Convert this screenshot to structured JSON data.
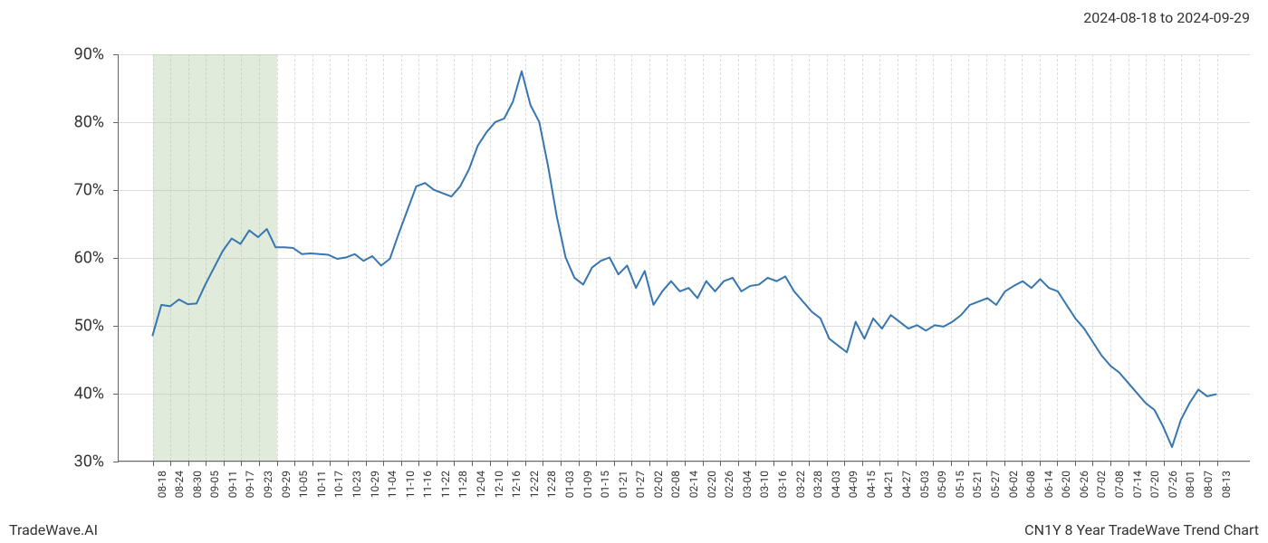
{
  "date_range": "2024-08-18 to 2024-09-29",
  "footer_left": "TradeWave.AI",
  "footer_right": "CN1Y 8 Year TradeWave Trend Chart",
  "chart": {
    "type": "line",
    "background_color": "#ffffff",
    "line_color": "#3876b0",
    "line_width": 2,
    "grid_color": "#dddddd",
    "axis_color": "#666666",
    "text_color": "#333333",
    "highlight_fill": "rgba(168,198,154,0.35)",
    "highlight_start_idx": 0,
    "highlight_end_idx": 6,
    "ylim": [
      30,
      90
    ],
    "ytick_step": 10,
    "y_ticks": [
      "30%",
      "40%",
      "50%",
      "60%",
      "70%",
      "80%",
      "90%"
    ],
    "y_label_fontsize": 18,
    "x_label_fontsize": 12,
    "x_ticks": [
      "08-18",
      "08-24",
      "08-30",
      "09-05",
      "09-11",
      "09-17",
      "09-23",
      "09-29",
      "10-05",
      "10-11",
      "10-17",
      "10-23",
      "10-29",
      "11-04",
      "11-10",
      "11-16",
      "11-22",
      "11-28",
      "12-04",
      "12-10",
      "12-16",
      "12-22",
      "12-28",
      "01-03",
      "01-09",
      "01-15",
      "01-21",
      "01-27",
      "02-02",
      "02-08",
      "02-14",
      "02-20",
      "02-26",
      "03-04",
      "03-10",
      "03-16",
      "03-22",
      "03-28",
      "04-03",
      "04-09",
      "04-15",
      "04-21",
      "04-27",
      "05-03",
      "05-09",
      "05-15",
      "05-21",
      "05-27",
      "06-02",
      "06-08",
      "06-14",
      "06-20",
      "06-26",
      "07-02",
      "07-08",
      "07-14",
      "07-20",
      "07-26",
      "08-01",
      "08-07",
      "08-13"
    ],
    "series": [
      48.5,
      53.0,
      52.8,
      53.8,
      53.1,
      53.2,
      56.0,
      58.5,
      61.0,
      62.8,
      62.0,
      64.0,
      63.0,
      64.2,
      61.5,
      61.5,
      61.4,
      60.5,
      60.6,
      60.5,
      60.4,
      59.8,
      60.0,
      60.5,
      59.5,
      60.2,
      58.8,
      59.8,
      63.5,
      67.0,
      70.5,
      71.0,
      70.0,
      69.5,
      69.0,
      70.5,
      73.0,
      76.5,
      78.5,
      80.0,
      80.5,
      83.0,
      87.5,
      82.5,
      80.0,
      73.5,
      66.0,
      60.0,
      57.0,
      56.0,
      58.5,
      59.5,
      60.0,
      57.5,
      58.8,
      55.5,
      58.0,
      53.0,
      55.0,
      56.5,
      55.0,
      55.5,
      54.0,
      56.5,
      55.0,
      56.5,
      57.0,
      55.0,
      55.8,
      56.0,
      57.0,
      56.5,
      57.2,
      55.0,
      53.5,
      52.0,
      51.0,
      48.0,
      47.0,
      46.0,
      50.5,
      48.0,
      51.0,
      49.5,
      51.5,
      50.5,
      49.5,
      50.0,
      49.2,
      50.0,
      49.8,
      50.5,
      51.5,
      53.0,
      53.5,
      54.0,
      53.0,
      55.0,
      55.8,
      56.5,
      55.5,
      56.8,
      55.5,
      55.0,
      53.0,
      51.0,
      49.5,
      47.5,
      45.5,
      44.0,
      43.0,
      41.5,
      40.0,
      38.5,
      37.5,
      35.0,
      32.0,
      36.0,
      38.5,
      40.5,
      39.5,
      39.8
    ]
  }
}
